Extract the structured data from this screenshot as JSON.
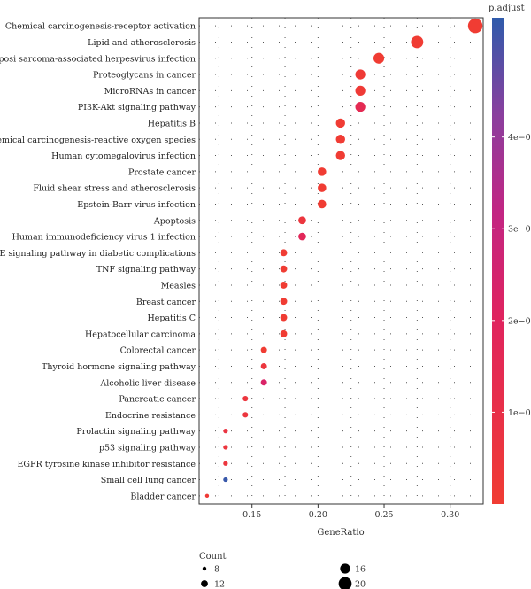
{
  "chart_data": {
    "type": "scatter",
    "title": "",
    "xlabel": "GeneRatio",
    "ylabel": "",
    "xlim": [
      0.11,
      0.325
    ],
    "x_ticks": [
      0.15,
      0.2,
      0.25,
      0.3
    ],
    "x_tick_labels": [
      "0.15",
      "0.20",
      "0.25",
      "0.30"
    ],
    "grid": "dotted",
    "categories": [
      "Chemical carcinogenesis-receptor activation",
      "Lipid and atherosclerosis",
      "Kaposi sarcoma-associated herpesvirus infection",
      "Proteoglycans in cancer",
      "MicroRNAs in cancer",
      "PI3K-Akt signaling pathway",
      "Hepatitis B",
      "Chemical carcinogenesis-reactive oxygen species",
      "Human cytomegalovirus infection",
      "Prostate cancer",
      "Fluid shear stress and atherosclerosis",
      "Epstein-Barr virus infection",
      "Apoptosis",
      "Human immunodeficiency virus 1 infection",
      "AGE-RAGE signaling pathway in diabetic complications",
      "TNF signaling pathway",
      "Measles",
      "Breast cancer",
      "Hepatitis C",
      "Hepatocellular carcinoma",
      "Colorectal cancer",
      "Thyroid hormone signaling pathway",
      "Alcoholic liver disease",
      "Pancreatic cancer",
      "Endocrine resistance",
      "Prolactin signaling pathway",
      "p53 signaling pathway",
      "EGFR tyrosine kinase inhibitor resistance",
      "Small cell lung cancer",
      "Bladder cancer"
    ],
    "gene_ratio": [
      0.319,
      0.275,
      0.246,
      0.232,
      0.232,
      0.232,
      0.217,
      0.217,
      0.217,
      0.203,
      0.203,
      0.203,
      0.188,
      0.188,
      0.174,
      0.174,
      0.174,
      0.174,
      0.174,
      0.174,
      0.159,
      0.159,
      0.159,
      0.145,
      0.145,
      0.13,
      0.13,
      0.13,
      0.13,
      0.116
    ],
    "count": [
      22,
      19,
      17,
      16,
      16,
      16,
      15,
      15,
      15,
      14,
      14,
      14,
      13,
      13,
      12,
      12,
      12,
      12,
      12,
      12,
      11,
      11,
      11,
      10,
      10,
      9,
      9,
      9,
      9,
      8
    ],
    "p_adjust": [
      1e-09,
      1e-09,
      1e-09,
      1.5e-08,
      1.5e-08,
      1.5e-07,
      3e-09,
      3e-09,
      3e-09,
      2e-09,
      2e-09,
      2e-09,
      5e-08,
      1.8e-07,
      1e-09,
      1e-09,
      1e-09,
      1e-09,
      1e-09,
      1e-09,
      1e-09,
      5e-08,
      2.3e-07,
      5e-08,
      5e-08,
      7e-08,
      5e-08,
      5e-08,
      5.2e-07,
      1.5e-08
    ],
    "color_legend": {
      "title": "p.adjust",
      "min": 0,
      "max": 5.3e-07,
      "ticks": [
        1e-07,
        2e-07,
        3e-07,
        4e-07
      ],
      "tick_labels": [
        "1e−07",
        "2e−07",
        "3e−07",
        "4e−07"
      ],
      "low_color": "#f03c33",
      "mid_color": "#d01580",
      "high_color": "#2f5bab"
    },
    "size_legend": {
      "title": "Count",
      "values": [
        8,
        12,
        16,
        20
      ],
      "labels": [
        "8",
        "12",
        "16",
        "20"
      ]
    },
    "legend_position": "right"
  }
}
